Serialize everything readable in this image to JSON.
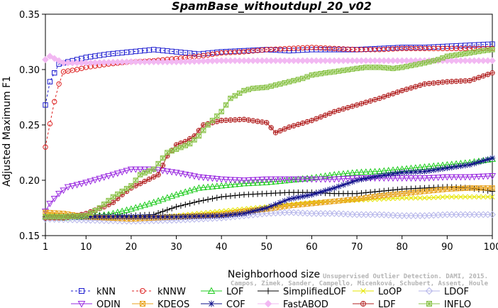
{
  "chart_data": {
    "type": "line",
    "title": "SpamBase_withoutdupl_20_v02",
    "xlabel": "Neighborhood size",
    "ylabel": "Adjusted Maximum F1",
    "xlim": [
      1,
      100
    ],
    "ylim": [
      0.15,
      0.35
    ],
    "xticks": [
      1,
      10,
      20,
      30,
      40,
      50,
      60,
      70,
      80,
      90,
      100
    ],
    "yticks": [
      0.15,
      0.2,
      0.25,
      0.3,
      0.35
    ],
    "grid": false,
    "legend_position": "bottom",
    "series": [
      {
        "name": "kNN",
        "color": "#1c1cd0",
        "marker": "square",
        "dash": "3,3",
        "points": [
          [
            1,
            0.268
          ],
          [
            2,
            0.289
          ],
          [
            3,
            0.297
          ],
          [
            4,
            0.305
          ],
          [
            6,
            0.307
          ],
          [
            8,
            0.309
          ],
          [
            10,
            0.311
          ],
          [
            15,
            0.314
          ],
          [
            20,
            0.316
          ],
          [
            25,
            0.318
          ],
          [
            30,
            0.316
          ],
          [
            35,
            0.314
          ],
          [
            40,
            0.316
          ],
          [
            45,
            0.317
          ],
          [
            50,
            0.318
          ],
          [
            55,
            0.317
          ],
          [
            60,
            0.318
          ],
          [
            65,
            0.318
          ],
          [
            70,
            0.318
          ],
          [
            75,
            0.319
          ],
          [
            80,
            0.32
          ],
          [
            85,
            0.32
          ],
          [
            90,
            0.321
          ],
          [
            95,
            0.322
          ],
          [
            100,
            0.323
          ]
        ]
      },
      {
        "name": "kNNW",
        "color": "#dd2020",
        "marker": "circle",
        "dash": "3,3",
        "points": [
          [
            1,
            0.23
          ],
          [
            2,
            0.251
          ],
          [
            3,
            0.271
          ],
          [
            4,
            0.287
          ],
          [
            5,
            0.298
          ],
          [
            8,
            0.3
          ],
          [
            10,
            0.302
          ],
          [
            15,
            0.305
          ],
          [
            20,
            0.307
          ],
          [
            25,
            0.308
          ],
          [
            30,
            0.31
          ],
          [
            35,
            0.312
          ],
          [
            40,
            0.315
          ],
          [
            45,
            0.316
          ],
          [
            50,
            0.318
          ],
          [
            55,
            0.319
          ],
          [
            60,
            0.32
          ],
          [
            65,
            0.319
          ],
          [
            70,
            0.318
          ],
          [
            75,
            0.318
          ],
          [
            80,
            0.319
          ],
          [
            85,
            0.319
          ],
          [
            90,
            0.319
          ],
          [
            95,
            0.319
          ],
          [
            100,
            0.319
          ]
        ]
      },
      {
        "name": "LOF",
        "color": "#22cc22",
        "marker": "triangle",
        "dash": "",
        "points": [
          [
            1,
            0.167
          ],
          [
            5,
            0.166
          ],
          [
            10,
            0.167
          ],
          [
            15,
            0.169
          ],
          [
            20,
            0.174
          ],
          [
            25,
            0.18
          ],
          [
            30,
            0.187
          ],
          [
            35,
            0.193
          ],
          [
            40,
            0.195
          ],
          [
            45,
            0.197
          ],
          [
            50,
            0.198
          ],
          [
            55,
            0.2
          ],
          [
            60,
            0.202
          ],
          [
            65,
            0.205
          ],
          [
            70,
            0.207
          ],
          [
            75,
            0.208
          ],
          [
            80,
            0.21
          ],
          [
            85,
            0.212
          ],
          [
            90,
            0.214
          ],
          [
            95,
            0.216
          ],
          [
            100,
            0.219
          ]
        ]
      },
      {
        "name": "SimplifiedLOF",
        "color": "#000000",
        "marker": "plus",
        "dash": "",
        "points": [
          [
            1,
            0.167
          ],
          [
            10,
            0.168
          ],
          [
            20,
            0.168
          ],
          [
            25,
            0.169
          ],
          [
            30,
            0.176
          ],
          [
            35,
            0.181
          ],
          [
            40,
            0.185
          ],
          [
            45,
            0.187
          ],
          [
            50,
            0.188
          ],
          [
            55,
            0.189
          ],
          [
            60,
            0.189
          ],
          [
            65,
            0.188
          ],
          [
            70,
            0.188
          ],
          [
            75,
            0.19
          ],
          [
            80,
            0.192
          ],
          [
            85,
            0.193
          ],
          [
            90,
            0.194
          ],
          [
            95,
            0.193
          ],
          [
            100,
            0.19
          ]
        ]
      },
      {
        "name": "LoOP",
        "color": "#e6e600",
        "marker": "x",
        "dash": "",
        "points": [
          [
            1,
            0.17
          ],
          [
            5,
            0.167
          ],
          [
            10,
            0.166
          ],
          [
            15,
            0.165
          ],
          [
            20,
            0.166
          ],
          [
            25,
            0.167
          ],
          [
            30,
            0.168
          ],
          [
            35,
            0.17
          ],
          [
            40,
            0.172
          ],
          [
            45,
            0.174
          ],
          [
            50,
            0.176
          ],
          [
            55,
            0.178
          ],
          [
            60,
            0.18
          ],
          [
            65,
            0.181
          ],
          [
            70,
            0.182
          ],
          [
            75,
            0.183
          ],
          [
            80,
            0.184
          ],
          [
            85,
            0.184
          ],
          [
            90,
            0.185
          ],
          [
            95,
            0.185
          ],
          [
            100,
            0.185
          ]
        ]
      },
      {
        "name": "LDOF",
        "color": "#b6b6ea",
        "marker": "diamond",
        "dash": "",
        "points": [
          [
            1,
            0.165
          ],
          [
            10,
            0.164
          ],
          [
            20,
            0.163
          ],
          [
            30,
            0.164
          ],
          [
            40,
            0.166
          ],
          [
            50,
            0.17
          ],
          [
            55,
            0.171
          ],
          [
            60,
            0.17
          ],
          [
            65,
            0.17
          ],
          [
            70,
            0.169
          ],
          [
            75,
            0.169
          ],
          [
            80,
            0.168
          ],
          [
            85,
            0.168
          ],
          [
            90,
            0.169
          ],
          [
            95,
            0.169
          ],
          [
            100,
            0.169
          ]
        ]
      },
      {
        "name": "ODIN",
        "color": "#9a2be0",
        "marker": "triangle-down",
        "dash": "",
        "points": [
          [
            1,
            0.172
          ],
          [
            2,
            0.179
          ],
          [
            4,
            0.188
          ],
          [
            6,
            0.194
          ],
          [
            10,
            0.198
          ],
          [
            15,
            0.204
          ],
          [
            20,
            0.21
          ],
          [
            25,
            0.21
          ],
          [
            30,
            0.207
          ],
          [
            35,
            0.203
          ],
          [
            40,
            0.201
          ],
          [
            45,
            0.2
          ],
          [
            50,
            0.201
          ],
          [
            55,
            0.201
          ],
          [
            60,
            0.201
          ],
          [
            65,
            0.201
          ],
          [
            70,
            0.202
          ],
          [
            75,
            0.202
          ],
          [
            80,
            0.202
          ],
          [
            85,
            0.202
          ],
          [
            90,
            0.203
          ],
          [
            95,
            0.203
          ],
          [
            100,
            0.204
          ]
        ]
      },
      {
        "name": "KDEOS",
        "color": "#e8a21c",
        "marker": "square-x",
        "dash": "",
        "points": [
          [
            1,
            0.171
          ],
          [
            5,
            0.17
          ],
          [
            10,
            0.167
          ],
          [
            15,
            0.166
          ],
          [
            20,
            0.165
          ],
          [
            25,
            0.166
          ],
          [
            30,
            0.167
          ],
          [
            35,
            0.168
          ],
          [
            40,
            0.169
          ],
          [
            45,
            0.172
          ],
          [
            50,
            0.174
          ],
          [
            55,
            0.177
          ],
          [
            60,
            0.179
          ],
          [
            65,
            0.181
          ],
          [
            70,
            0.183
          ],
          [
            75,
            0.186
          ],
          [
            80,
            0.188
          ],
          [
            85,
            0.19
          ],
          [
            90,
            0.192
          ],
          [
            95,
            0.193
          ],
          [
            100,
            0.193
          ]
        ]
      },
      {
        "name": "COF",
        "color": "#10108a",
        "marker": "star",
        "dash": "",
        "points": [
          [
            1,
            0.167
          ],
          [
            10,
            0.167
          ],
          [
            20,
            0.167
          ],
          [
            30,
            0.167
          ],
          [
            40,
            0.168
          ],
          [
            45,
            0.17
          ],
          [
            50,
            0.175
          ],
          [
            55,
            0.183
          ],
          [
            60,
            0.187
          ],
          [
            65,
            0.193
          ],
          [
            70,
            0.2
          ],
          [
            75,
            0.204
          ],
          [
            80,
            0.207
          ],
          [
            85,
            0.208
          ],
          [
            90,
            0.211
          ],
          [
            95,
            0.214
          ],
          [
            100,
            0.22
          ]
        ]
      },
      {
        "name": "FastABOD",
        "color": "#f2b8f2",
        "marker": "diamond-filled",
        "dash": "",
        "points": [
          [
            1,
            0.309
          ],
          [
            2,
            0.312
          ],
          [
            3,
            0.31
          ],
          [
            5,
            0.306
          ],
          [
            10,
            0.306
          ],
          [
            20,
            0.307
          ],
          [
            30,
            0.307
          ],
          [
            40,
            0.308
          ],
          [
            50,
            0.308
          ],
          [
            60,
            0.308
          ],
          [
            70,
            0.308
          ],
          [
            80,
            0.308
          ],
          [
            90,
            0.308
          ],
          [
            100,
            0.308
          ]
        ]
      },
      {
        "name": "LDF",
        "color": "#b22222",
        "marker": "circle-plus",
        "dash": "",
        "points": [
          [
            1,
            0.166
          ],
          [
            5,
            0.166
          ],
          [
            8,
            0.168
          ],
          [
            10,
            0.17
          ],
          [
            12,
            0.173
          ],
          [
            14,
            0.176
          ],
          [
            16,
            0.18
          ],
          [
            18,
            0.187
          ],
          [
            20,
            0.193
          ],
          [
            22,
            0.197
          ],
          [
            24,
            0.201
          ],
          [
            26,
            0.205
          ],
          [
            28,
            0.222
          ],
          [
            30,
            0.232
          ],
          [
            32,
            0.235
          ],
          [
            34,
            0.24
          ],
          [
            36,
            0.25
          ],
          [
            38,
            0.252
          ],
          [
            40,
            0.254
          ],
          [
            45,
            0.255
          ],
          [
            50,
            0.252
          ],
          [
            52,
            0.243
          ],
          [
            55,
            0.248
          ],
          [
            60,
            0.254
          ],
          [
            65,
            0.262
          ],
          [
            70,
            0.268
          ],
          [
            75,
            0.274
          ],
          [
            80,
            0.281
          ],
          [
            85,
            0.287
          ],
          [
            90,
            0.289
          ],
          [
            95,
            0.29
          ],
          [
            100,
            0.297
          ]
        ]
      },
      {
        "name": "INFLO",
        "color": "#8bc34a",
        "marker": "star-box",
        "dash": "",
        "points": [
          [
            1,
            0.167
          ],
          [
            5,
            0.167
          ],
          [
            10,
            0.168
          ],
          [
            13,
            0.175
          ],
          [
            16,
            0.185
          ],
          [
            18,
            0.19
          ],
          [
            20,
            0.195
          ],
          [
            22,
            0.205
          ],
          [
            25,
            0.21
          ],
          [
            28,
            0.225
          ],
          [
            30,
            0.228
          ],
          [
            33,
            0.233
          ],
          [
            35,
            0.24
          ],
          [
            37,
            0.25
          ],
          [
            40,
            0.262
          ],
          [
            42,
            0.274
          ],
          [
            45,
            0.281
          ],
          [
            47,
            0.283
          ],
          [
            50,
            0.284
          ],
          [
            52,
            0.286
          ],
          [
            55,
            0.289
          ],
          [
            58,
            0.292
          ],
          [
            60,
            0.295
          ],
          [
            63,
            0.297
          ],
          [
            65,
            0.298
          ],
          [
            70,
            0.301
          ],
          [
            72,
            0.302
          ],
          [
            75,
            0.302
          ],
          [
            78,
            0.301
          ],
          [
            80,
            0.302
          ],
          [
            85,
            0.306
          ],
          [
            88,
            0.309
          ],
          [
            90,
            0.312
          ],
          [
            95,
            0.315
          ],
          [
            98,
            0.317
          ],
          [
            100,
            0.318
          ]
        ]
      }
    ],
    "legend": [
      [
        "kNN",
        "kNNW",
        "LOF",
        "SimplifiedLOF",
        "LoOP",
        "LDOF"
      ],
      [
        "ODIN",
        "KDEOS",
        "COF",
        "FastABOD",
        "LDF",
        "INFLO"
      ]
    ]
  },
  "watermark": {
    "line1": "Unsupervised Outlier Detection. DAMI, 2015.",
    "line2": "Campos, Zimek, Sander, Campello, Micenková, Schubert, Assent, Houle"
  }
}
